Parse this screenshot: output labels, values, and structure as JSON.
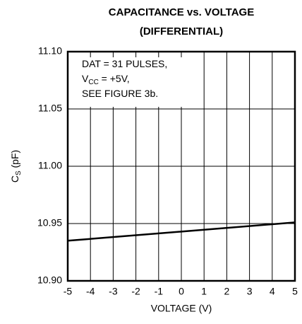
{
  "chart_data": {
    "type": "line",
    "title": [
      "CAPACITANCE vs. VOLTAGE",
      "(DIFFERENTIAL)"
    ],
    "x_label": "VOLTAGE (V)",
    "y_label": {
      "main": "C",
      "sub": "S",
      "rest": " (pF)"
    },
    "annotation": [
      {
        "main": "DAT = 31 PULSES,"
      },
      {
        "main": "V",
        "sub": "CC",
        "rest": " = +5V,"
      },
      {
        "main": "SEE FIGURE 3b."
      }
    ],
    "x": [
      -5,
      0,
      5
    ],
    "series": [
      {
        "color": "#000000",
        "values": [
          10.935,
          10.943,
          10.951
        ]
      }
    ],
    "xlim": [
      -5,
      5
    ],
    "xticks": [
      -5,
      -4,
      -3,
      -2,
      -1,
      0,
      1,
      2,
      3,
      4,
      5
    ],
    "ylim": [
      10.9,
      11.1
    ],
    "yticks": [
      {
        "value": 10.9,
        "label": "10.90"
      },
      10.95,
      {
        "value": 11.0,
        "label": "11.00"
      },
      11.05,
      {
        "value": 11.1,
        "label": "11.10"
      }
    ],
    "grid": true
  }
}
